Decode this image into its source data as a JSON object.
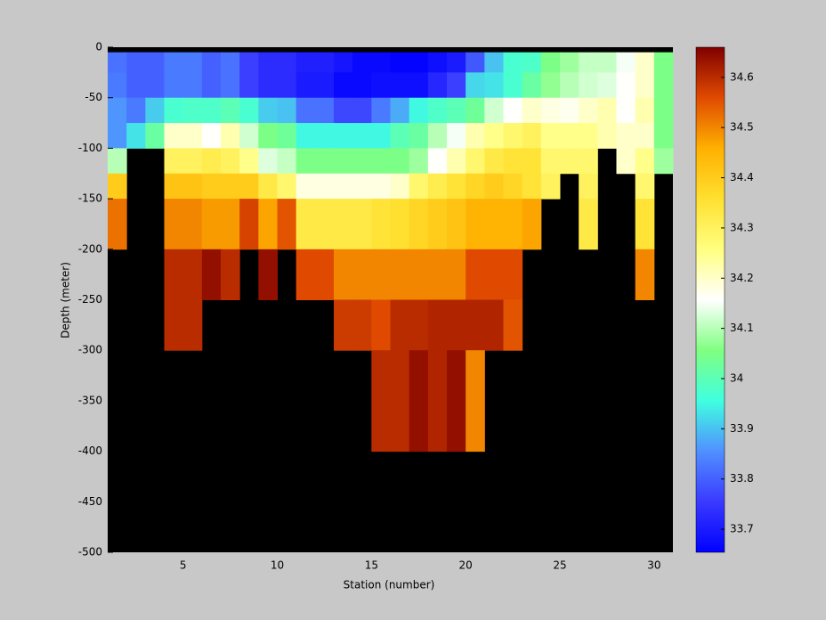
{
  "chart_data": {
    "type": "heatmap",
    "xlabel": "Station (number)",
    "ylabel": "Depth (meter)",
    "x_edges": [
      1,
      2,
      3,
      4,
      5,
      6,
      7,
      8,
      9,
      10,
      11,
      12,
      13,
      14,
      15,
      16,
      17,
      18,
      19,
      20,
      21,
      22,
      23,
      24,
      25,
      26,
      27,
      28,
      29,
      30,
      31
    ],
    "y_edges": [
      0,
      -5,
      -25,
      -50,
      -75,
      -100,
      -125,
      -150,
      -200,
      -250,
      -300,
      -400,
      -500
    ],
    "values": [
      [
        null,
        null,
        null,
        null,
        null,
        null,
        null,
        null,
        null,
        null,
        null,
        null,
        null,
        null,
        null,
        null,
        null,
        null,
        null,
        null,
        null,
        null,
        null,
        null,
        null,
        null,
        null,
        null,
        null,
        null
      ],
      [
        33.82,
        33.8,
        33.8,
        33.83,
        33.83,
        33.8,
        33.82,
        33.76,
        33.73,
        33.73,
        33.71,
        33.71,
        33.69,
        33.67,
        33.67,
        33.66,
        33.66,
        33.68,
        33.7,
        33.79,
        33.9,
        33.97,
        33.98,
        34.05,
        34.08,
        34.11,
        34.11,
        34.15,
        34.2,
        34.05
      ],
      [
        33.83,
        33.8,
        33.8,
        33.83,
        33.83,
        33.8,
        33.82,
        33.76,
        33.73,
        33.73,
        33.7,
        33.7,
        33.67,
        33.67,
        33.68,
        33.68,
        33.68,
        33.72,
        33.76,
        33.92,
        33.93,
        33.97,
        34.02,
        34.07,
        34.1,
        34.12,
        34.13,
        34.16,
        34.2,
        34.05
      ],
      [
        33.86,
        33.83,
        33.91,
        33.97,
        33.98,
        33.98,
        34.0,
        33.97,
        33.91,
        33.9,
        33.82,
        33.82,
        33.77,
        33.77,
        33.83,
        33.88,
        33.95,
        33.98,
        34.0,
        34.03,
        34.12,
        34.16,
        34.2,
        34.18,
        34.17,
        34.2,
        34.22,
        34.16,
        34.22,
        34.05
      ],
      [
        33.86,
        33.93,
        34.02,
        34.2,
        34.2,
        34.16,
        34.22,
        34.12,
        34.05,
        34.03,
        33.95,
        33.95,
        33.95,
        33.95,
        33.95,
        34.0,
        34.02,
        34.1,
        34.15,
        34.22,
        34.25,
        34.28,
        34.3,
        34.25,
        34.25,
        34.25,
        34.22,
        34.2,
        34.2,
        34.05
      ],
      [
        34.1,
        null,
        null,
        34.3,
        34.3,
        34.32,
        34.3,
        34.25,
        34.13,
        34.11,
        34.05,
        34.05,
        34.05,
        34.05,
        34.05,
        34.05,
        34.08,
        34.16,
        34.22,
        34.28,
        34.33,
        34.35,
        34.35,
        34.28,
        34.28,
        34.28,
        null,
        34.2,
        34.25,
        34.08
      ],
      [
        34.4,
        null,
        null,
        34.42,
        34.42,
        34.4,
        34.4,
        34.4,
        34.33,
        34.28,
        34.18,
        34.18,
        34.18,
        34.18,
        34.18,
        34.2,
        34.28,
        34.32,
        34.35,
        34.38,
        34.4,
        34.38,
        34.35,
        34.3,
        null,
        34.3,
        null,
        null,
        34.28,
        null
      ],
      [
        34.52,
        null,
        null,
        34.5,
        34.5,
        34.48,
        34.48,
        34.57,
        34.47,
        34.55,
        34.33,
        34.33,
        34.33,
        34.33,
        34.35,
        34.36,
        34.38,
        34.4,
        34.42,
        34.45,
        34.45,
        34.45,
        34.47,
        null,
        null,
        34.33,
        null,
        null,
        34.35,
        null
      ],
      [
        null,
        null,
        null,
        34.6,
        34.6,
        34.64,
        34.6,
        null,
        34.64,
        null,
        34.56,
        34.56,
        34.5,
        34.5,
        34.5,
        34.5,
        34.5,
        34.5,
        34.5,
        34.56,
        34.56,
        34.56,
        null,
        null,
        null,
        null,
        null,
        null,
        34.5,
        null
      ],
      [
        null,
        null,
        null,
        34.6,
        34.6,
        null,
        null,
        null,
        null,
        null,
        null,
        null,
        34.58,
        34.58,
        34.56,
        34.6,
        34.6,
        34.61,
        34.61,
        34.61,
        34.61,
        34.55,
        null,
        null,
        null,
        null,
        null,
        null,
        null,
        null
      ],
      [
        null,
        null,
        null,
        null,
        null,
        null,
        null,
        null,
        null,
        null,
        null,
        null,
        null,
        null,
        34.6,
        34.6,
        34.64,
        34.61,
        34.64,
        34.5,
        null,
        null,
        null,
        null,
        null,
        null,
        null,
        null,
        null,
        null
      ],
      [
        null,
        null,
        null,
        null,
        null,
        null,
        null,
        null,
        null,
        null,
        null,
        null,
        null,
        null,
        null,
        null,
        null,
        null,
        null,
        null,
        null,
        null,
        null,
        null,
        null,
        null,
        null,
        null,
        null,
        null
      ]
    ],
    "xlim": [
      1,
      31
    ],
    "ylim": [
      -500,
      0
    ],
    "xticks": [
      5,
      10,
      15,
      20,
      25,
      30
    ],
    "yticks": [
      0,
      -50,
      -100,
      -150,
      -200,
      -250,
      -300,
      -350,
      -400,
      -450,
      -500
    ],
    "background": "#000000",
    "clim": [
      33.654,
      34.66
    ],
    "colorbar_ticks": [
      33.7,
      33.8,
      33.9,
      34,
      34.1,
      34.2,
      34.3,
      34.4,
      34.5,
      34.6
    ],
    "colormap": [
      "#0000ff",
      "#3a3aff",
      "#5090ff",
      "#40ffe0",
      "#80ff80",
      "#ffffff",
      "#ffff80",
      "#ffe030",
      "#ffb000",
      "#e04a00",
      "#800000"
    ]
  }
}
